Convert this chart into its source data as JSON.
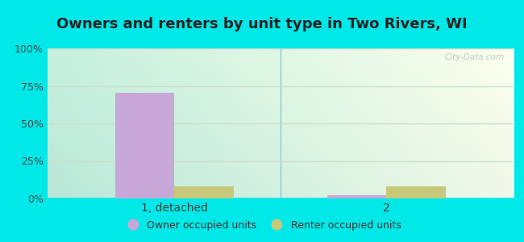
{
  "title": "Owners and renters by unit type in Two Rivers, WI",
  "categories": [
    "1, detached",
    "2"
  ],
  "owner_values": [
    70.5,
    2.0
  ],
  "renter_values": [
    8.0,
    8.0
  ],
  "owner_color": "#c8a8d8",
  "renter_color": "#c8c87a",
  "bar_width": 0.28,
  "ylim": [
    0,
    100
  ],
  "yticks": [
    0,
    25,
    50,
    75,
    100
  ],
  "ytick_labels": [
    "0%",
    "25%",
    "50%",
    "75%",
    "100%"
  ],
  "legend_owner": "Owner occupied units",
  "legend_renter": "Renter occupied units",
  "bg_outer": "#00e8e8",
  "bg_grad_left": "#b8e8d8",
  "bg_grad_right": "#f0f8e8",
  "watermark": "City-Data.com",
  "title_fontsize": 13,
  "tick_fontsize": 9,
  "legend_fontsize": 9,
  "separator_color": "#88cccc",
  "grid_color": "#ccddcc",
  "title_color": "#222222"
}
